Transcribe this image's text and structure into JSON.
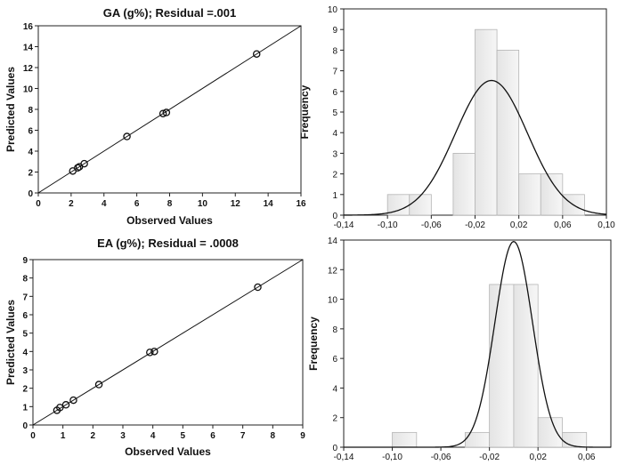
{
  "chart_data": [
    {
      "id": "ga-scatter",
      "type": "scatter",
      "title": "GA (g%); Residual =.001",
      "xlabel": "Observed Values",
      "ylabel": "Predicted Values",
      "xlim": [
        0,
        16
      ],
      "ylim": [
        0,
        16
      ],
      "xticks": [
        0,
        2,
        4,
        6,
        8,
        10,
        12,
        14,
        16
      ],
      "yticks": [
        0,
        2,
        4,
        6,
        8,
        10,
        12,
        14,
        16
      ],
      "fit_line": true,
      "points": [
        {
          "x": 2.1,
          "y": 2.1
        },
        {
          "x": 2.4,
          "y": 2.4
        },
        {
          "x": 2.5,
          "y": 2.5
        },
        {
          "x": 2.8,
          "y": 2.8
        },
        {
          "x": 5.4,
          "y": 5.4
        },
        {
          "x": 7.6,
          "y": 7.6
        },
        {
          "x": 7.8,
          "y": 7.7
        },
        {
          "x": 13.3,
          "y": 13.3
        }
      ]
    },
    {
      "id": "ga-hist",
      "type": "bar",
      "title": "",
      "xlabel": "",
      "ylabel": "Frequency",
      "xlim": [
        -0.14,
        0.1
      ],
      "ylim": [
        0,
        10
      ],
      "xticks": [
        "-0,14",
        "-0,10",
        "-0,06",
        "-0,02",
        "0,02",
        "0,06",
        "0,10"
      ],
      "xtick_values": [
        -0.14,
        -0.1,
        -0.06,
        -0.02,
        0.02,
        0.06,
        0.1
      ],
      "yticks": [
        0,
        1,
        2,
        3,
        4,
        5,
        6,
        7,
        8,
        9,
        10
      ],
      "bin_edges": [
        -0.1,
        -0.08,
        -0.06,
        -0.04,
        -0.02,
        0.0,
        0.02,
        0.04,
        0.06,
        0.08
      ],
      "values": [
        1,
        1,
        0,
        3,
        9,
        8,
        2,
        2,
        1
      ],
      "normal_curve": {
        "mean": -0.005,
        "sd": 0.033,
        "n": 27
      }
    },
    {
      "id": "ea-scatter",
      "type": "scatter",
      "title": "EA (g%); Residual = .0008",
      "xlabel": "Observed Values",
      "ylabel": "Predicted Values",
      "xlim": [
        0,
        9
      ],
      "ylim": [
        0,
        9
      ],
      "xticks": [
        0,
        1,
        2,
        3,
        4,
        5,
        6,
        7,
        8,
        9
      ],
      "yticks": [
        0,
        1,
        2,
        3,
        4,
        5,
        6,
        7,
        8,
        9
      ],
      "fit_line": true,
      "points": [
        {
          "x": 0.8,
          "y": 0.8
        },
        {
          "x": 0.9,
          "y": 0.95
        },
        {
          "x": 1.1,
          "y": 1.1
        },
        {
          "x": 1.35,
          "y": 1.35
        },
        {
          "x": 2.2,
          "y": 2.2
        },
        {
          "x": 3.9,
          "y": 3.95
        },
        {
          "x": 4.05,
          "y": 4.0
        },
        {
          "x": 7.5,
          "y": 7.5
        }
      ]
    },
    {
      "id": "ea-hist",
      "type": "bar",
      "title": "",
      "xlabel": "",
      "ylabel": "Frequency",
      "xlim": [
        -0.14,
        0.08
      ],
      "ylim": [
        0,
        14
      ],
      "xticks": [
        "-0,14",
        "-0,10",
        "-0,06",
        "-0,02",
        "0,02",
        "0,06"
      ],
      "xtick_values": [
        -0.14,
        -0.1,
        -0.06,
        -0.02,
        0.02,
        0.06
      ],
      "yticks": [
        0,
        2,
        4,
        6,
        8,
        10,
        12,
        14
      ],
      "bin_edges": [
        -0.1,
        -0.08,
        -0.06,
        -0.04,
        -0.02,
        0.0,
        0.02,
        0.04,
        0.06
      ],
      "values": [
        1,
        0,
        0,
        1,
        11,
        11,
        2,
        1
      ],
      "normal_curve": {
        "mean": 0.0,
        "sd": 0.0155,
        "n": 27
      }
    }
  ]
}
